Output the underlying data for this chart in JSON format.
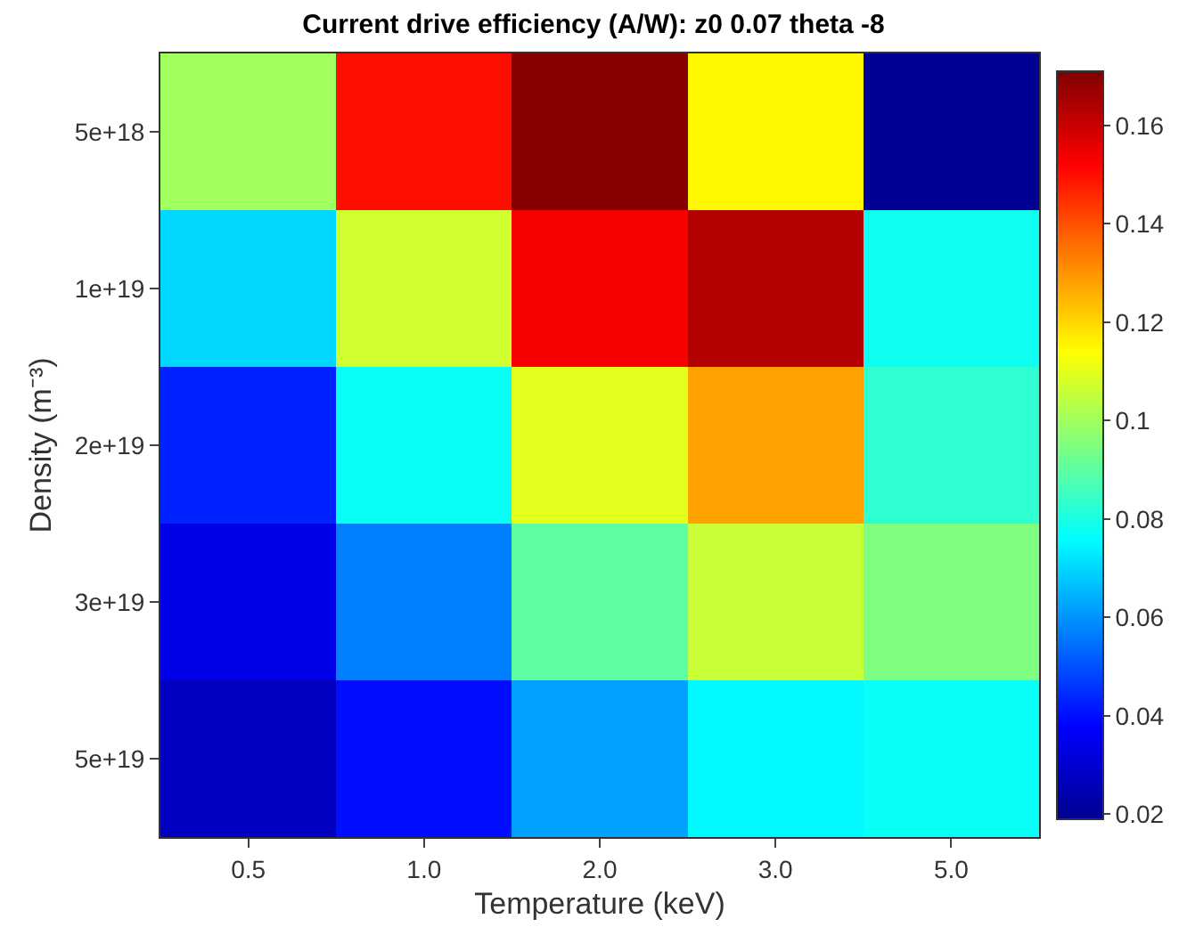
{
  "chart_data": {
    "type": "heatmap",
    "title": "Current drive efficiency (A/W): z0 0.07 theta -8",
    "xlabel": "Temperature (keV)",
    "ylabel": "Density (m⁻³)",
    "categories": [
      "0.5",
      "1.0",
      "2.0",
      "3.0",
      "5.0"
    ],
    "y_categories": [
      "5e+18",
      "1e+19",
      "2e+19",
      "3e+19",
      "5e+19"
    ],
    "cells": [
      [
        0.1,
        0.15,
        0.17,
        0.115,
        0.02
      ],
      [
        0.07,
        0.107,
        0.153,
        0.163,
        0.078
      ],
      [
        0.043,
        0.077,
        0.11,
        0.128,
        0.083
      ],
      [
        0.034,
        0.057,
        0.09,
        0.106,
        0.095
      ],
      [
        0.027,
        0.04,
        0.062,
        0.075,
        0.077
      ]
    ],
    "clim": [
      0.019,
      0.171
    ],
    "cticks": [
      0.02,
      0.04,
      0.06,
      0.08,
      0.1,
      0.12,
      0.14,
      0.16
    ]
  }
}
